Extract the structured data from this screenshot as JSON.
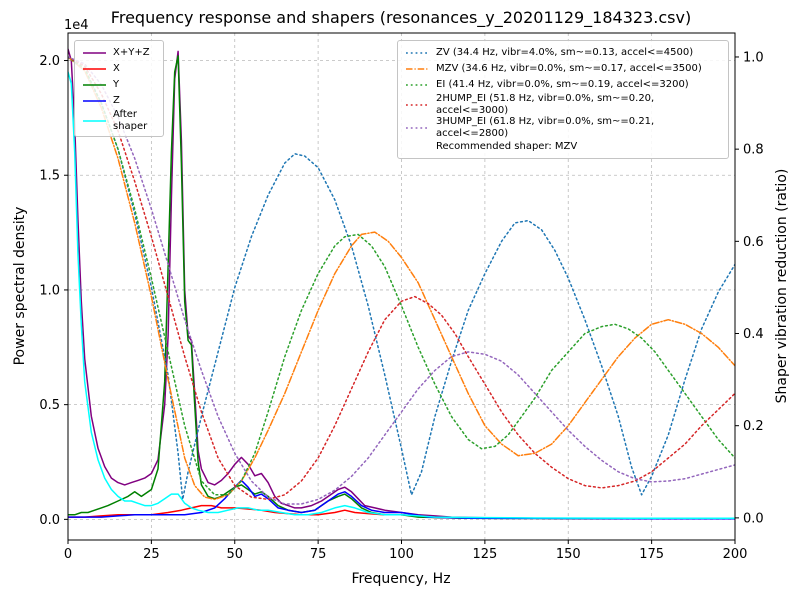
{
  "title": "Frequency response and shapers (resonances_y_20201129_184323.csv)",
  "chart_data": {
    "type": "line",
    "title": "Frequency response and shapers (resonances_y_20201129_184323.csv)",
    "xlabel": "Frequency, Hz",
    "x_range": [
      0,
      200
    ],
    "x_ticks": [
      0,
      25,
      50,
      75,
      100,
      125,
      150,
      175,
      200
    ],
    "left_axis": {
      "label": "Power spectral density",
      "offset_text": "1e4",
      "units": "values are in multiples of 1e4",
      "range": [
        -0.09,
        2.12
      ],
      "ticks": [
        0,
        0.5,
        1,
        1.5,
        2
      ]
    },
    "right_axis": {
      "label": "Shaper vibration reduction (ratio)",
      "range": [
        -0.048,
        1.052
      ],
      "ticks": [
        0,
        0.2,
        0.4,
        0.6,
        0.8,
        1
      ]
    },
    "grid": true,
    "legend_position": {
      "psd": "upper left",
      "shapers": "upper right"
    },
    "series": [
      {
        "id": "sum",
        "name": "X+Y+Z",
        "axis": "left",
        "color": "#800080",
        "style": "solid",
        "x": [
          0,
          1,
          2,
          3,
          4,
          5,
          7,
          9,
          11,
          13,
          15,
          17,
          19,
          21,
          23,
          25,
          27,
          29,
          30,
          31,
          32,
          33,
          34,
          35,
          36,
          37,
          38,
          39,
          40,
          42,
          44,
          46,
          48,
          50,
          52,
          54,
          56,
          58,
          60,
          62,
          64,
          66,
          68,
          70,
          73,
          76,
          79,
          81,
          83,
          85,
          87,
          89,
          92,
          95,
          100,
          105,
          110,
          115,
          120,
          130,
          140,
          160,
          180,
          200
        ],
        "y": [
          2.05,
          2.0,
          1.72,
          1.3,
          0.95,
          0.7,
          0.45,
          0.31,
          0.23,
          0.18,
          0.16,
          0.15,
          0.16,
          0.17,
          0.18,
          0.2,
          0.26,
          0.5,
          0.8,
          1.4,
          1.92,
          2.04,
          1.65,
          1.0,
          0.8,
          0.78,
          0.55,
          0.3,
          0.22,
          0.16,
          0.15,
          0.17,
          0.2,
          0.24,
          0.27,
          0.24,
          0.19,
          0.2,
          0.16,
          0.1,
          0.07,
          0.06,
          0.05,
          0.05,
          0.06,
          0.08,
          0.11,
          0.13,
          0.14,
          0.12,
          0.09,
          0.06,
          0.05,
          0.04,
          0.03,
          0.02,
          0.015,
          0.01,
          0.008,
          0.006,
          0.005,
          0.004,
          0.004,
          0.003
        ]
      },
      {
        "id": "x",
        "name": "X",
        "axis": "left",
        "color": "#ff0000",
        "style": "solid",
        "x": [
          0,
          5,
          10,
          15,
          20,
          25,
          30,
          34,
          37,
          40,
          43,
          46,
          50,
          54,
          58,
          62,
          66,
          70,
          75,
          80,
          83,
          86,
          90,
          95,
          100,
          110,
          120,
          140,
          170,
          200
        ],
        "y": [
          0.01,
          0.01,
          0.015,
          0.02,
          0.02,
          0.02,
          0.03,
          0.04,
          0.05,
          0.06,
          0.06,
          0.05,
          0.05,
          0.045,
          0.04,
          0.03,
          0.025,
          0.02,
          0.02,
          0.03,
          0.04,
          0.03,
          0.025,
          0.02,
          0.02,
          0.008,
          0.005,
          0.004,
          0.003,
          0.003
        ]
      },
      {
        "id": "y",
        "name": "Y",
        "axis": "left",
        "color": "#008000",
        "style": "solid",
        "x": [
          0,
          2,
          4,
          6,
          8,
          10,
          12,
          15,
          18,
          20,
          22,
          25,
          27,
          29,
          30,
          31,
          32,
          33,
          34,
          35,
          36,
          37,
          38,
          39,
          40,
          42,
          44,
          46,
          48,
          50,
          52,
          54,
          56,
          58,
          60,
          63,
          66,
          70,
          74,
          78,
          81,
          83,
          85,
          88,
          91,
          95,
          100,
          105,
          110,
          120,
          140,
          170,
          200
        ],
        "y": [
          0.02,
          0.02,
          0.03,
          0.03,
          0.04,
          0.05,
          0.06,
          0.08,
          0.1,
          0.12,
          0.1,
          0.13,
          0.22,
          0.6,
          1.1,
          1.6,
          1.95,
          2.02,
          1.55,
          0.95,
          0.78,
          0.76,
          0.5,
          0.25,
          0.15,
          0.1,
          0.09,
          0.1,
          0.12,
          0.14,
          0.15,
          0.13,
          0.11,
          0.12,
          0.1,
          0.06,
          0.04,
          0.03,
          0.04,
          0.08,
          0.1,
          0.11,
          0.09,
          0.05,
          0.03,
          0.02,
          0.02,
          0.01,
          0.008,
          0.005,
          0.004,
          0.003,
          0.003
        ]
      },
      {
        "id": "z",
        "name": "Z",
        "axis": "left",
        "color": "#0000ff",
        "style": "solid",
        "x": [
          0,
          5,
          10,
          15,
          20,
          25,
          30,
          35,
          40,
          44,
          47,
          50,
          52,
          54,
          56,
          58,
          60,
          63,
          66,
          70,
          74,
          78,
          81,
          83,
          85,
          88,
          91,
          95,
          100,
          104,
          108,
          112,
          120,
          140,
          170,
          200
        ],
        "y": [
          0.01,
          0.01,
          0.01,
          0.015,
          0.02,
          0.02,
          0.02,
          0.02,
          0.03,
          0.05,
          0.09,
          0.14,
          0.17,
          0.14,
          0.1,
          0.11,
          0.09,
          0.05,
          0.04,
          0.03,
          0.04,
          0.08,
          0.11,
          0.12,
          0.1,
          0.06,
          0.04,
          0.03,
          0.03,
          0.02,
          0.01,
          0.008,
          0.005,
          0.004,
          0.003,
          0.003
        ]
      },
      {
        "id": "after-shaper",
        "name": "After shaper",
        "axis": "left",
        "color": "#00ffff",
        "style": "solid",
        "x": [
          0,
          1,
          2,
          3,
          4,
          5,
          7,
          9,
          11,
          13,
          15,
          17,
          19,
          21,
          23,
          25,
          27,
          29,
          31,
          33,
          35,
          37,
          39,
          42,
          45,
          48,
          51,
          54,
          57,
          60,
          64,
          68,
          72,
          76,
          80,
          83,
          86,
          90,
          95,
          100,
          105,
          110,
          120,
          140,
          170,
          200
        ],
        "y": [
          1.95,
          1.9,
          1.6,
          1.15,
          0.85,
          0.6,
          0.38,
          0.26,
          0.18,
          0.13,
          0.1,
          0.08,
          0.08,
          0.07,
          0.06,
          0.06,
          0.07,
          0.09,
          0.11,
          0.11,
          0.07,
          0.05,
          0.04,
          0.03,
          0.03,
          0.04,
          0.05,
          0.05,
          0.04,
          0.04,
          0.03,
          0.02,
          0.02,
          0.03,
          0.05,
          0.06,
          0.05,
          0.03,
          0.02,
          0.02,
          0.015,
          0.01,
          0.008,
          0.006,
          0.005,
          0.005
        ]
      },
      {
        "id": "zv",
        "name": "ZV",
        "axis": "right",
        "color": "#1f77b4",
        "style": "dotted",
        "x": [
          0,
          5,
          10,
          15,
          20,
          25,
          30,
          33,
          34.4,
          36,
          40,
          45,
          50,
          55,
          60,
          65,
          68,
          71,
          75,
          80,
          85,
          90,
          95,
          100,
          103,
          106,
          110,
          115,
          120,
          125,
          130,
          134,
          138,
          142,
          146,
          150,
          155,
          160,
          165,
          169,
          172,
          175,
          180,
          185,
          190,
          195,
          200
        ],
        "y": [
          1.0,
          0.97,
          0.9,
          0.8,
          0.66,
          0.5,
          0.31,
          0.14,
          0.04,
          0.1,
          0.22,
          0.36,
          0.5,
          0.61,
          0.7,
          0.77,
          0.79,
          0.785,
          0.76,
          0.69,
          0.59,
          0.46,
          0.31,
          0.15,
          0.05,
          0.1,
          0.22,
          0.34,
          0.45,
          0.53,
          0.6,
          0.64,
          0.645,
          0.625,
          0.58,
          0.52,
          0.43,
          0.33,
          0.22,
          0.11,
          0.05,
          0.09,
          0.18,
          0.3,
          0.41,
          0.49,
          0.55
        ]
      },
      {
        "id": "mzv",
        "name": "MZV",
        "axis": "right",
        "color": "#ff7f0e",
        "style": "dashdot",
        "x": [
          0,
          5,
          10,
          15,
          20,
          25,
          30,
          35,
          38,
          41,
          44,
          48,
          52,
          56,
          60,
          65,
          70,
          75,
          80,
          85,
          88,
          92,
          96,
          100,
          105,
          110,
          115,
          120,
          125,
          130,
          135,
          140,
          145,
          150,
          155,
          160,
          165,
          170,
          175,
          180,
          185,
          190,
          195,
          200
        ],
        "y": [
          1.0,
          0.97,
          0.89,
          0.78,
          0.64,
          0.48,
          0.3,
          0.13,
          0.07,
          0.045,
          0.04,
          0.05,
          0.08,
          0.13,
          0.19,
          0.27,
          0.36,
          0.45,
          0.53,
          0.59,
          0.615,
          0.62,
          0.6,
          0.565,
          0.51,
          0.43,
          0.35,
          0.27,
          0.2,
          0.16,
          0.135,
          0.14,
          0.16,
          0.2,
          0.25,
          0.3,
          0.35,
          0.39,
          0.42,
          0.43,
          0.42,
          0.4,
          0.37,
          0.33
        ]
      },
      {
        "id": "ei",
        "name": "EI",
        "axis": "right",
        "color": "#2ca02c",
        "style": "dotted",
        "x": [
          0,
          5,
          10,
          15,
          20,
          25,
          30,
          35,
          40,
          44,
          48,
          52,
          56,
          60,
          65,
          70,
          75,
          80,
          83,
          87,
          91,
          95,
          100,
          105,
          110,
          115,
          120,
          124,
          128,
          132,
          136,
          140,
          145,
          150,
          155,
          160,
          164,
          168,
          172,
          176,
          180,
          185,
          190,
          195,
          200
        ],
        "y": [
          1.0,
          0.975,
          0.9,
          0.8,
          0.67,
          0.52,
          0.36,
          0.2,
          0.08,
          0.05,
          0.05,
          0.08,
          0.14,
          0.23,
          0.35,
          0.45,
          0.53,
          0.59,
          0.61,
          0.615,
          0.59,
          0.545,
          0.46,
          0.37,
          0.29,
          0.22,
          0.17,
          0.15,
          0.155,
          0.18,
          0.22,
          0.26,
          0.32,
          0.36,
          0.4,
          0.415,
          0.42,
          0.41,
          0.39,
          0.36,
          0.32,
          0.27,
          0.22,
          0.17,
          0.13
        ]
      },
      {
        "id": "2hump-ei",
        "name": "2HUMP_EI",
        "axis": "right",
        "color": "#d62728",
        "style": "dotted",
        "x": [
          0,
          5,
          10,
          15,
          20,
          25,
          30,
          35,
          40,
          45,
          50,
          55,
          60,
          65,
          70,
          75,
          80,
          85,
          90,
          95,
          100,
          104,
          108,
          112,
          116,
          120,
          125,
          130,
          135,
          140,
          145,
          150,
          155,
          160,
          165,
          170,
          175,
          180,
          185,
          190,
          195,
          200
        ],
        "y": [
          1.0,
          0.98,
          0.92,
          0.84,
          0.73,
          0.61,
          0.48,
          0.35,
          0.23,
          0.13,
          0.07,
          0.045,
          0.04,
          0.05,
          0.08,
          0.13,
          0.2,
          0.28,
          0.36,
          0.43,
          0.47,
          0.48,
          0.465,
          0.44,
          0.4,
          0.35,
          0.29,
          0.23,
          0.18,
          0.14,
          0.11,
          0.085,
          0.07,
          0.065,
          0.07,
          0.08,
          0.1,
          0.13,
          0.16,
          0.2,
          0.235,
          0.27
        ]
      },
      {
        "id": "3hump-ei",
        "name": "3HUMP_EI",
        "axis": "right",
        "color": "#9467bd",
        "style": "dotted",
        "x": [
          0,
          5,
          10,
          15,
          20,
          25,
          30,
          35,
          40,
          45,
          50,
          55,
          60,
          65,
          70,
          75,
          80,
          85,
          90,
          95,
          100,
          105,
          110,
          115,
          120,
          125,
          130,
          135,
          140,
          145,
          150,
          155,
          160,
          165,
          170,
          175,
          180,
          185,
          190,
          195,
          200
        ],
        "y": [
          1.0,
          0.985,
          0.94,
          0.87,
          0.78,
          0.67,
          0.55,
          0.43,
          0.32,
          0.22,
          0.14,
          0.08,
          0.045,
          0.03,
          0.03,
          0.04,
          0.06,
          0.09,
          0.13,
          0.18,
          0.23,
          0.28,
          0.32,
          0.35,
          0.36,
          0.355,
          0.34,
          0.31,
          0.27,
          0.23,
          0.19,
          0.155,
          0.125,
          0.1,
          0.085,
          0.078,
          0.08,
          0.085,
          0.095,
          0.105,
          0.115
        ]
      }
    ]
  },
  "legend_psd": {
    "items": [
      {
        "id": "sum",
        "label": "X+Y+Z",
        "color": "#800080",
        "style": "solid"
      },
      {
        "id": "x",
        "label": "X",
        "color": "#ff0000",
        "style": "solid"
      },
      {
        "id": "y",
        "label": "Y",
        "color": "#008000",
        "style": "solid"
      },
      {
        "id": "z",
        "label": "Z",
        "color": "#0000ff",
        "style": "solid"
      },
      {
        "id": "after-shaper",
        "label": "After shaper",
        "label_lines": [
          "After",
          "shaper"
        ],
        "color": "#00ffff",
        "style": "solid"
      }
    ]
  },
  "legend_shapers": {
    "items": [
      {
        "id": "zv",
        "label": "ZV (34.4 Hz, vibr=4.0%, sm~=0.13, accel<=4500)",
        "color": "#1f77b4",
        "style": "dotted"
      },
      {
        "id": "mzv",
        "label": "MZV (34.6 Hz, vibr=0.0%, sm~=0.17, accel<=3500)",
        "color": "#ff7f0e",
        "style": "dashdot"
      },
      {
        "id": "ei",
        "label": "EI (41.4 Hz, vibr=0.0%, sm~=0.19, accel<=3200)",
        "color": "#2ca02c",
        "style": "dotted"
      },
      {
        "id": "2hump-ei",
        "label": "2HUMP_EI (51.8 Hz, vibr=0.0%, sm~=0.20, accel<=3000)",
        "color": "#d62728",
        "style": "dotted"
      },
      {
        "id": "3hump-ei",
        "label": "3HUMP_EI (61.8 Hz, vibr=0.0%, sm~=0.21, accel<=2800)",
        "color": "#9467bd",
        "style": "dotted"
      }
    ],
    "note": "Recommended shaper: MZV"
  }
}
